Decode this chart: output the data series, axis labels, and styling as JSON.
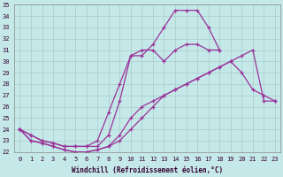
{
  "xlabel": "Windchill (Refroidissement éolien,°C)",
  "background_color": "#c5e8e8",
  "grid_color": "#a8cccc",
  "line_color": "#993399",
  "xlim": [
    -0.5,
    23.5
  ],
  "ylim": [
    22,
    35
  ],
  "yticks": [
    22,
    23,
    24,
    25,
    26,
    27,
    28,
    29,
    30,
    31,
    32,
    33,
    34,
    35
  ],
  "xticks": [
    0,
    1,
    2,
    3,
    4,
    5,
    6,
    7,
    8,
    9,
    10,
    11,
    12,
    13,
    14,
    15,
    16,
    17,
    18,
    19,
    20,
    21,
    22,
    23
  ],
  "hours": [
    0,
    1,
    2,
    3,
    4,
    5,
    6,
    7,
    8,
    9,
    10,
    11,
    12,
    13,
    14,
    15,
    16,
    17,
    18,
    19,
    20,
    21,
    22,
    23
  ],
  "line1": [
    24.0,
    23.0,
    22.8,
    22.5,
    22.2,
    22.0,
    22.0,
    22.2,
    22.5,
    23.5,
    25.0,
    26.0,
    26.5,
    27.0,
    27.5,
    28.0,
    28.5,
    29.0,
    29.5,
    30.0,
    30.5,
    31.0,
    26.5,
    26.5
  ],
  "line2": [
    24.0,
    23.0,
    22.8,
    22.5,
    22.2,
    22.0,
    22.0,
    22.2,
    22.5,
    23.0,
    24.0,
    25.0,
    26.0,
    27.0,
    27.5,
    28.0,
    28.5,
    29.0,
    29.5,
    30.0,
    29.0,
    27.5,
    27.0,
    26.5
  ],
  "line3": [
    24.0,
    23.5,
    23.0,
    22.8,
    22.5,
    22.5,
    22.5,
    23.0,
    25.5,
    28.0,
    30.5,
    31.0,
    31.0,
    30.0,
    31.0,
    31.5,
    31.5,
    31.0,
    31.0,
    null,
    null,
    null,
    null,
    null
  ],
  "line4": [
    24.0,
    23.5,
    23.0,
    22.8,
    22.5,
    22.5,
    22.5,
    22.5,
    23.5,
    26.5,
    30.5,
    30.5,
    31.5,
    33.0,
    34.5,
    34.5,
    34.5,
    33.0,
    31.0,
    null,
    null,
    null,
    null,
    null
  ]
}
